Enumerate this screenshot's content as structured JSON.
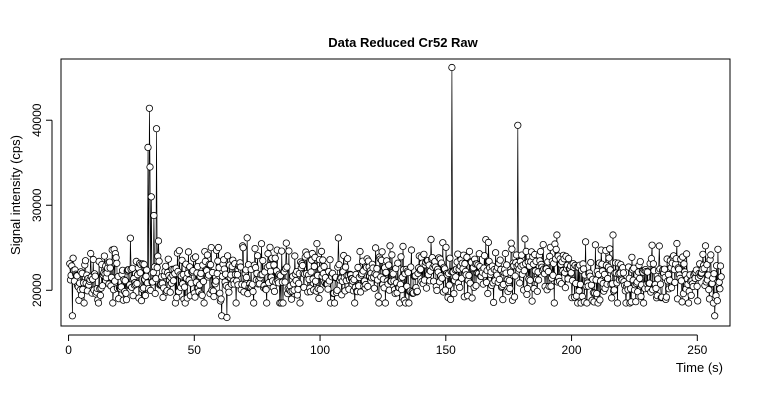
{
  "chart_data": {
    "type": "line",
    "title": "Data Reduced Cr52 Raw",
    "xlabel": "Time (s)",
    "ylabel": "Signal intensity (cps)",
    "xlim": [
      -3,
      263
    ],
    "ylim": [
      15800,
      47200
    ],
    "x_ticks": [
      0,
      50,
      100,
      150,
      200,
      250
    ],
    "y_ticks": [
      20000,
      30000,
      40000
    ],
    "grid": false,
    "legend": "none",
    "series": [
      {
        "style": "type b: open circles joined by lines",
        "x_start": 0.5,
        "x_end": 259.5,
        "n_points": 1000,
        "baseline_mean": 21500,
        "baseline_noise": 1700,
        "colors": {
          "line": "#000000",
          "marker": "#000000"
        },
        "features": [
          {
            "x": 32,
            "y": 41400,
            "label": "spike"
          },
          {
            "x": 31.5,
            "y": 36800,
            "label": "spike"
          },
          {
            "x": 32.3,
            "y": 34500,
            "label": "spike"
          },
          {
            "x": 33,
            "y": 31000,
            "label": "spike"
          },
          {
            "x": 34,
            "y": 28800,
            "label": "spike"
          },
          {
            "x": 35,
            "y": 39000,
            "label": "spike"
          },
          {
            "x": 35.8,
            "y": 25800,
            "label": "spike"
          },
          {
            "x": 152.5,
            "y": 46200,
            "label": "spike"
          },
          {
            "x": 178.5,
            "y": 39400,
            "label": "spike"
          },
          {
            "x": 61,
            "y": 17000,
            "label": "dip"
          },
          {
            "x": 63,
            "y": 16800,
            "label": "dip"
          },
          {
            "x": 257,
            "y": 17000,
            "label": "dip"
          },
          {
            "x": 1.5,
            "y": 17000,
            "label": "dip"
          }
        ]
      }
    ]
  }
}
